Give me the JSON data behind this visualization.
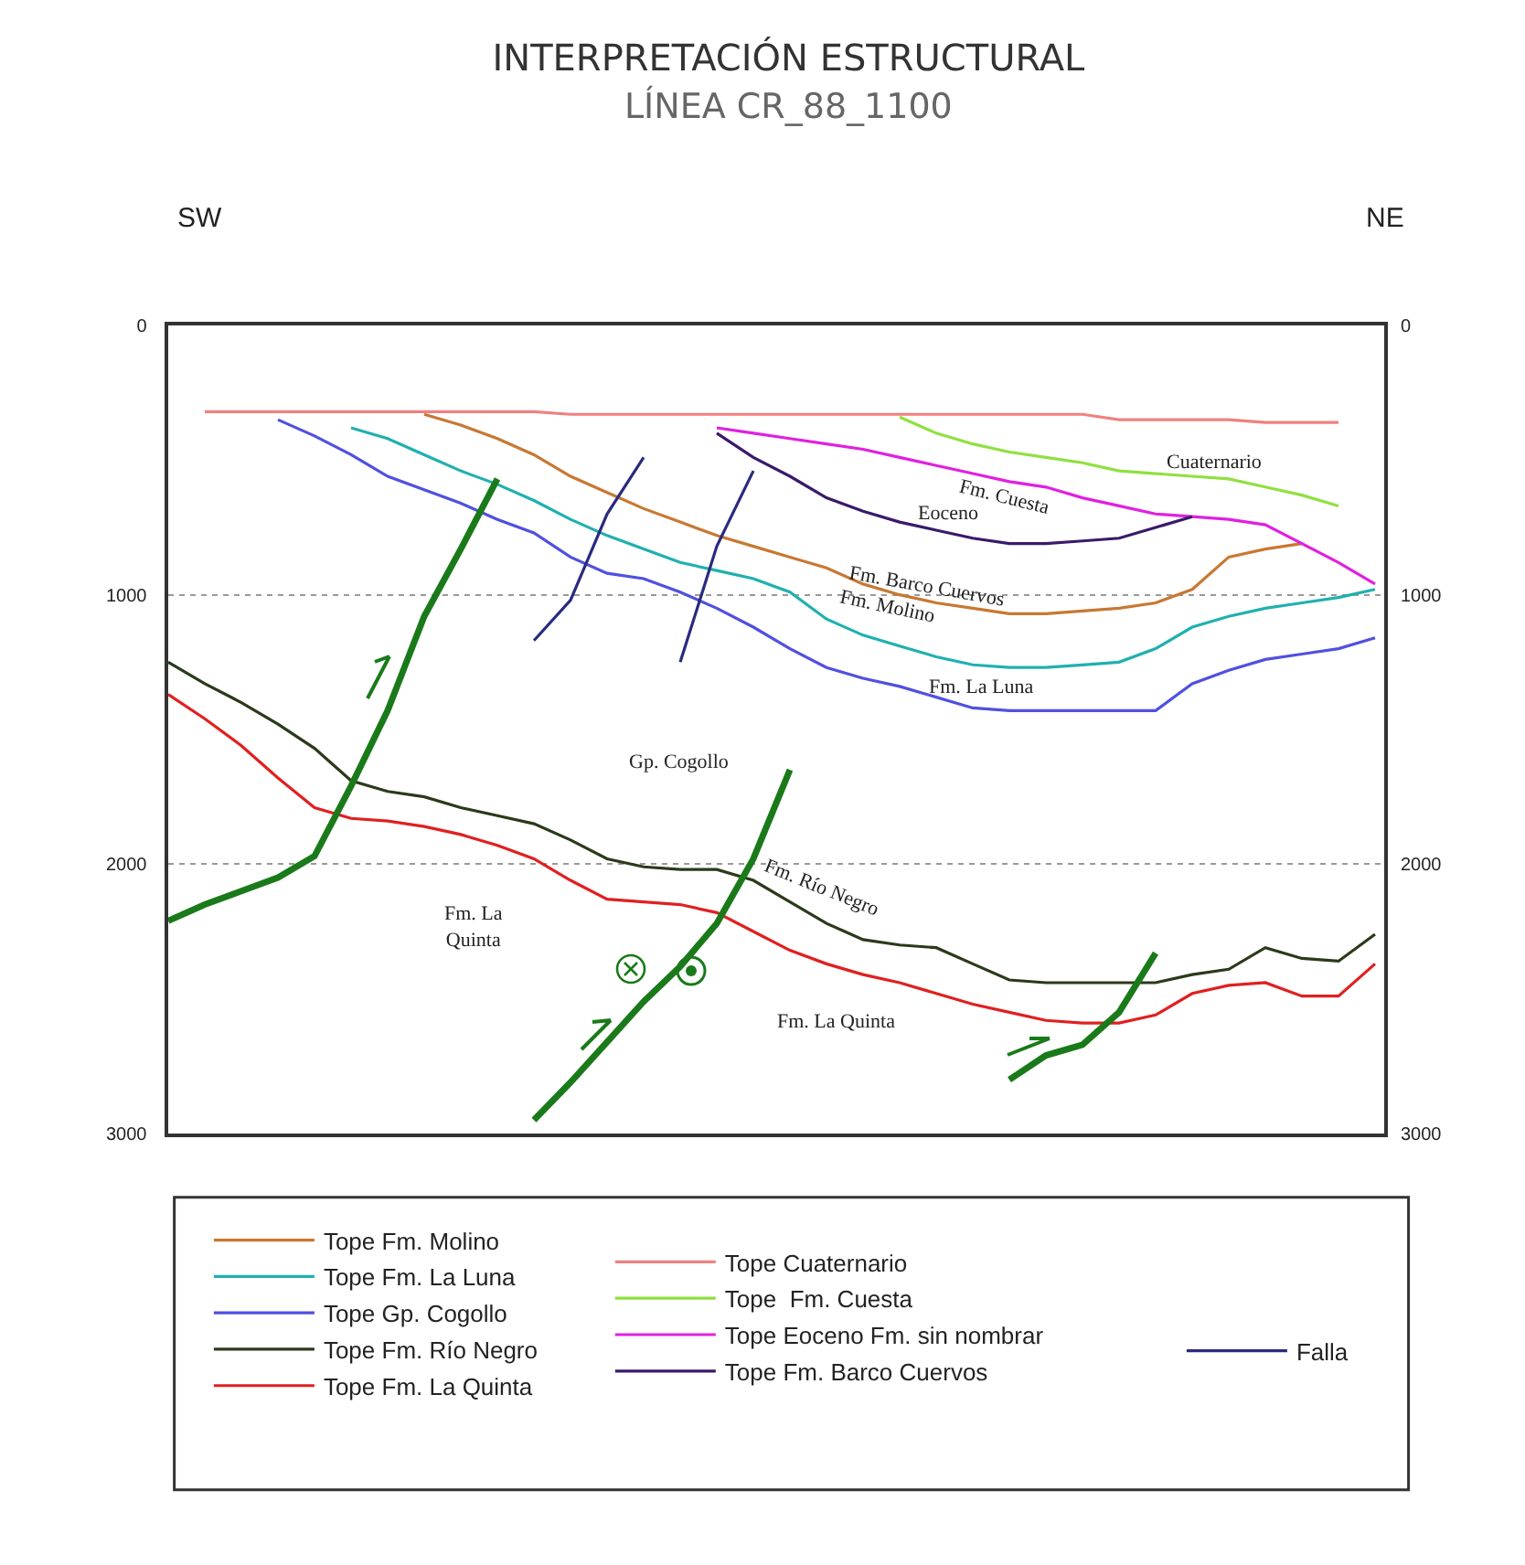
{
  "chart_data": {
    "type": "line",
    "title": "INTERPRETACIÓN ESTRUCTURAL",
    "subtitle": "LÍNEA CR_88_1100",
    "categories": [
      null,
      null,
      null,
      null,
      null,
      null,
      null,
      null,
      null,
      null,
      null,
      null,
      null,
      null,
      null,
      null,
      null,
      null,
      null,
      null,
      null,
      null,
      null,
      null,
      null,
      null,
      null,
      null,
      null,
      null,
      null,
      null,
      null,
      null
    ],
    "series": [
      {
        "name": "Tope Fm. Molino",
        "color": "#c87832",
        "values": [
          null,
          null,
          null,
          null,
          null,
          null,
          null,
          330,
          370,
          420,
          480,
          560,
          620,
          680,
          730,
          780,
          820,
          860,
          900,
          960,
          1000,
          1030,
          1050,
          1070,
          1070,
          1060,
          1050,
          1030,
          980,
          860,
          830,
          810,
          null,
          null
        ]
      },
      {
        "name": "Tope Fm. La Luna",
        "color": "#20b0b0",
        "values": [
          null,
          null,
          null,
          null,
          null,
          380,
          420,
          480,
          540,
          590,
          650,
          720,
          780,
          830,
          880,
          910,
          940,
          990,
          1090,
          1150,
          1190,
          1230,
          1260,
          1270,
          1270,
          1260,
          1250,
          1200,
          1120,
          1080,
          1050,
          1030,
          1010,
          980
        ]
      },
      {
        "name": "Tope Gp. Cogollo",
        "color": "#5050e0",
        "values": [
          null,
          null,
          null,
          350,
          410,
          480,
          560,
          610,
          660,
          720,
          770,
          860,
          920,
          940,
          990,
          1050,
          1120,
          1200,
          1270,
          1310,
          1340,
          1380,
          1420,
          1430,
          1430,
          1430,
          1430,
          1430,
          1330,
          1280,
          1240,
          1220,
          1200,
          1160
        ]
      },
      {
        "name": "Tope Fm. Río Negro",
        "color": "#2a3a1a",
        "values": [
          1250,
          1330,
          1400,
          1480,
          1570,
          1690,
          1730,
          1750,
          1790,
          1820,
          1850,
          1910,
          1980,
          2010,
          2020,
          2020,
          2060,
          2140,
          2220,
          2280,
          2300,
          2310,
          2370,
          2430,
          2440,
          2440,
          2440,
          2440,
          2410,
          2390,
          2310,
          2350,
          2360,
          2260
        ]
      },
      {
        "name": "Tope Fm. La Quinta",
        "color": "#e02020",
        "values": [
          1370,
          1460,
          1560,
          1680,
          1790,
          1830,
          1840,
          1860,
          1890,
          1930,
          1980,
          2060,
          2130,
          2140,
          2150,
          2180,
          2250,
          2320,
          2370,
          2410,
          2440,
          2480,
          2520,
          2550,
          2580,
          2590,
          2590,
          2560,
          2480,
          2450,
          2440,
          2490,
          2490,
          2370
        ]
      },
      {
        "name": "Tope Cuaternario",
        "color": "#f08080",
        "values": [
          null,
          320,
          320,
          320,
          320,
          320,
          320,
          320,
          320,
          320,
          320,
          330,
          330,
          330,
          330,
          330,
          330,
          330,
          330,
          330,
          330,
          330,
          330,
          330,
          330,
          330,
          350,
          350,
          350,
          350,
          360,
          360,
          360,
          null
        ]
      },
      {
        "name": "Tope  Fm. Cuesta",
        "color": "#90e040",
        "values": [
          null,
          null,
          null,
          null,
          null,
          null,
          null,
          null,
          null,
          null,
          null,
          null,
          null,
          null,
          null,
          null,
          null,
          null,
          null,
          null,
          340,
          400,
          440,
          470,
          490,
          510,
          540,
          550,
          560,
          570,
          600,
          630,
          670,
          null
        ]
      },
      {
        "name": "Tope Eoceno Fm. sin nombrar",
        "color": "#e020e0",
        "values": [
          null,
          null,
          null,
          null,
          null,
          null,
          null,
          null,
          null,
          null,
          null,
          null,
          null,
          null,
          null,
          380,
          400,
          420,
          440,
          460,
          490,
          520,
          550,
          580,
          600,
          640,
          670,
          700,
          710,
          720,
          740,
          810,
          880,
          960
        ]
      },
      {
        "name": "Tope Fm. Barco Cuervos",
        "color": "#3a1a6a",
        "values": [
          null,
          null,
          null,
          null,
          null,
          null,
          null,
          null,
          null,
          null,
          null,
          null,
          null,
          null,
          null,
          400,
          490,
          560,
          640,
          690,
          730,
          760,
          790,
          810,
          810,
          800,
          790,
          750,
          710,
          null,
          null,
          null,
          null,
          null
        ]
      },
      {
        "name": "Falla",
        "color": "#2a2a80",
        "values": [
          null,
          null,
          null,
          null,
          null,
          null,
          null,
          null,
          null,
          null,
          1170,
          1020,
          700,
          490,
          null,
          null,
          null,
          null,
          null,
          null,
          null,
          null,
          null,
          null,
          null,
          null,
          null,
          null,
          null,
          null,
          null,
          null,
          null,
          null
        ]
      },
      {
        "color": "#2a2a80",
        "values": [
          null,
          null,
          null,
          null,
          null,
          null,
          null,
          null,
          null,
          null,
          null,
          null,
          null,
          null,
          1250,
          820,
          540,
          null,
          null,
          null,
          null,
          null,
          null,
          null,
          null,
          null,
          null,
          null,
          null,
          null,
          null,
          null,
          null,
          null
        ]
      },
      {
        "color": "#1a7a1a",
        "values": [
          2210,
          2150,
          2100,
          2050,
          1970,
          1710,
          1430,
          1080,
          830,
          570,
          null,
          null,
          null,
          null,
          null,
          null,
          null,
          null,
          null,
          null,
          null,
          null,
          null,
          null,
          null,
          null,
          null,
          null,
          null,
          null,
          null,
          null,
          null,
          null
        ]
      },
      {
        "color": "#1a7a1a",
        "values": [
          null,
          null,
          null,
          null,
          null,
          null,
          null,
          null,
          null,
          null,
          2950,
          2810,
          2660,
          2510,
          2380,
          2220,
          1980,
          1650,
          null,
          null,
          null,
          null,
          null,
          null,
          null,
          null,
          null,
          null,
          null,
          null,
          null,
          null,
          null,
          null
        ]
      },
      {
        "color": "#1a7a1a",
        "values": [
          null,
          null,
          null,
          null,
          null,
          null,
          null,
          null,
          null,
          null,
          null,
          null,
          null,
          null,
          null,
          null,
          null,
          null,
          null,
          null,
          null,
          null,
          null,
          2800,
          2710,
          2670,
          2550,
          2330,
          null,
          null,
          null,
          null,
          null,
          null
        ]
      }
    ],
    "ylim": [
      3000,
      0
    ],
    "yticks": [
      0,
      1000,
      2000,
      3000
    ],
    "y2lim": [
      3000,
      0
    ],
    "y2ticks": [
      0,
      1000,
      2000,
      3000
    ],
    "grid": "y",
    "legend": "bottom",
    "tick_labels": "y",
    "marker": "none",
    "annotations": [
      "SW",
      "NE",
      "Cuaternario",
      "Fm. Cuesta",
      "Eoceno",
      "Fm. Barco Cuervos",
      "Fm. Molino",
      "Fm. La Luna",
      "Gp. Cogollo",
      "Fm. La\nQuinta",
      "Fm. Río Negro",
      "Fm. La Quinta"
    ]
  }
}
